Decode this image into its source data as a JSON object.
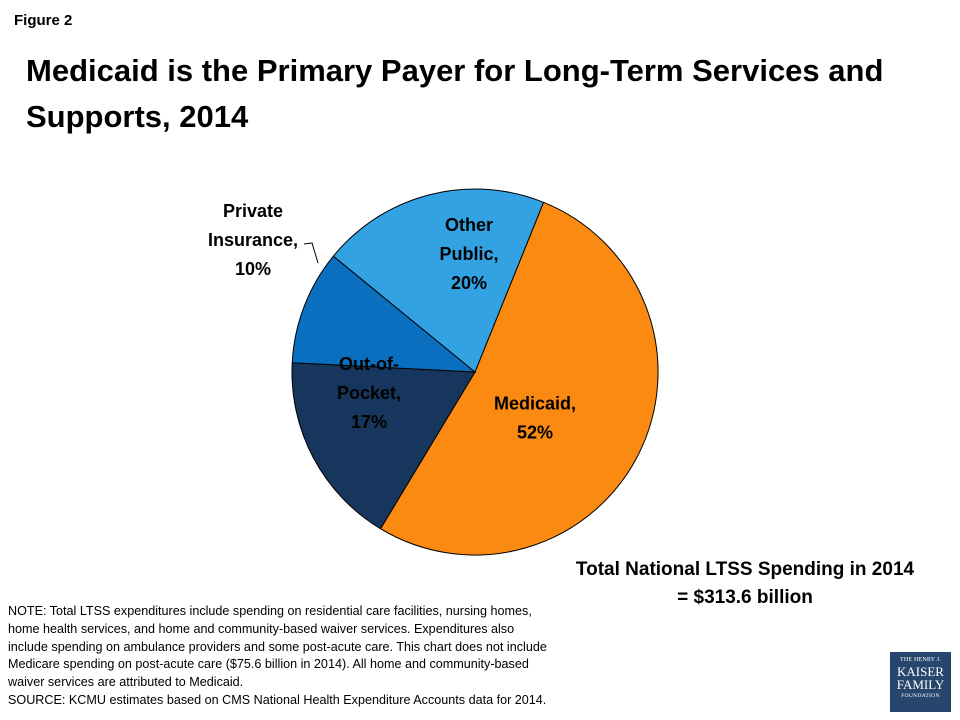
{
  "figure_label": "Figure 2",
  "title_line1": "Medicaid is the Primary Payer for Long-Term Services and",
  "title_line2": "Supports, 2014",
  "chart_data": {
    "type": "pie",
    "slices": [
      {
        "label": [
          "Medicaid,",
          "52%"
        ],
        "value": 52,
        "color": "#fb8a12"
      },
      {
        "label": [
          "Out-of-",
          "Pocket,",
          "17%"
        ],
        "value": 17,
        "color": "#17365d"
      },
      {
        "label": [
          "Private",
          "Insurance,",
          "10%"
        ],
        "value": 10,
        "color": "#0a6fbf"
      },
      {
        "label": [
          "Other",
          "Public,",
          "20%"
        ],
        "value": 20,
        "color": "#32a2e2"
      }
    ]
  },
  "total_line1": "Total National LTSS Spending in 2014",
  "total_line2": "= $313.6 billion",
  "notes": [
    "NOTE: Total LTSS expenditures include spending on residential care facilities, nursing homes,",
    "home health services, and home and community-based waiver services. Expenditures also",
    "include spending on ambulance providers and some post-acute care. This chart does not include",
    "Medicare spending on post-acute care ($75.6 billion in 2014). All home and community-based",
    "waiver services are attributed to Medicaid.",
    "SOURCE: KCMU estimates based on CMS National Health Expenditure Accounts data for 2014."
  ],
  "logo": {
    "line1": "THE HENRY J.",
    "line2": "KAISER",
    "line3": "FAMILY",
    "line4": "FOUNDATION"
  }
}
